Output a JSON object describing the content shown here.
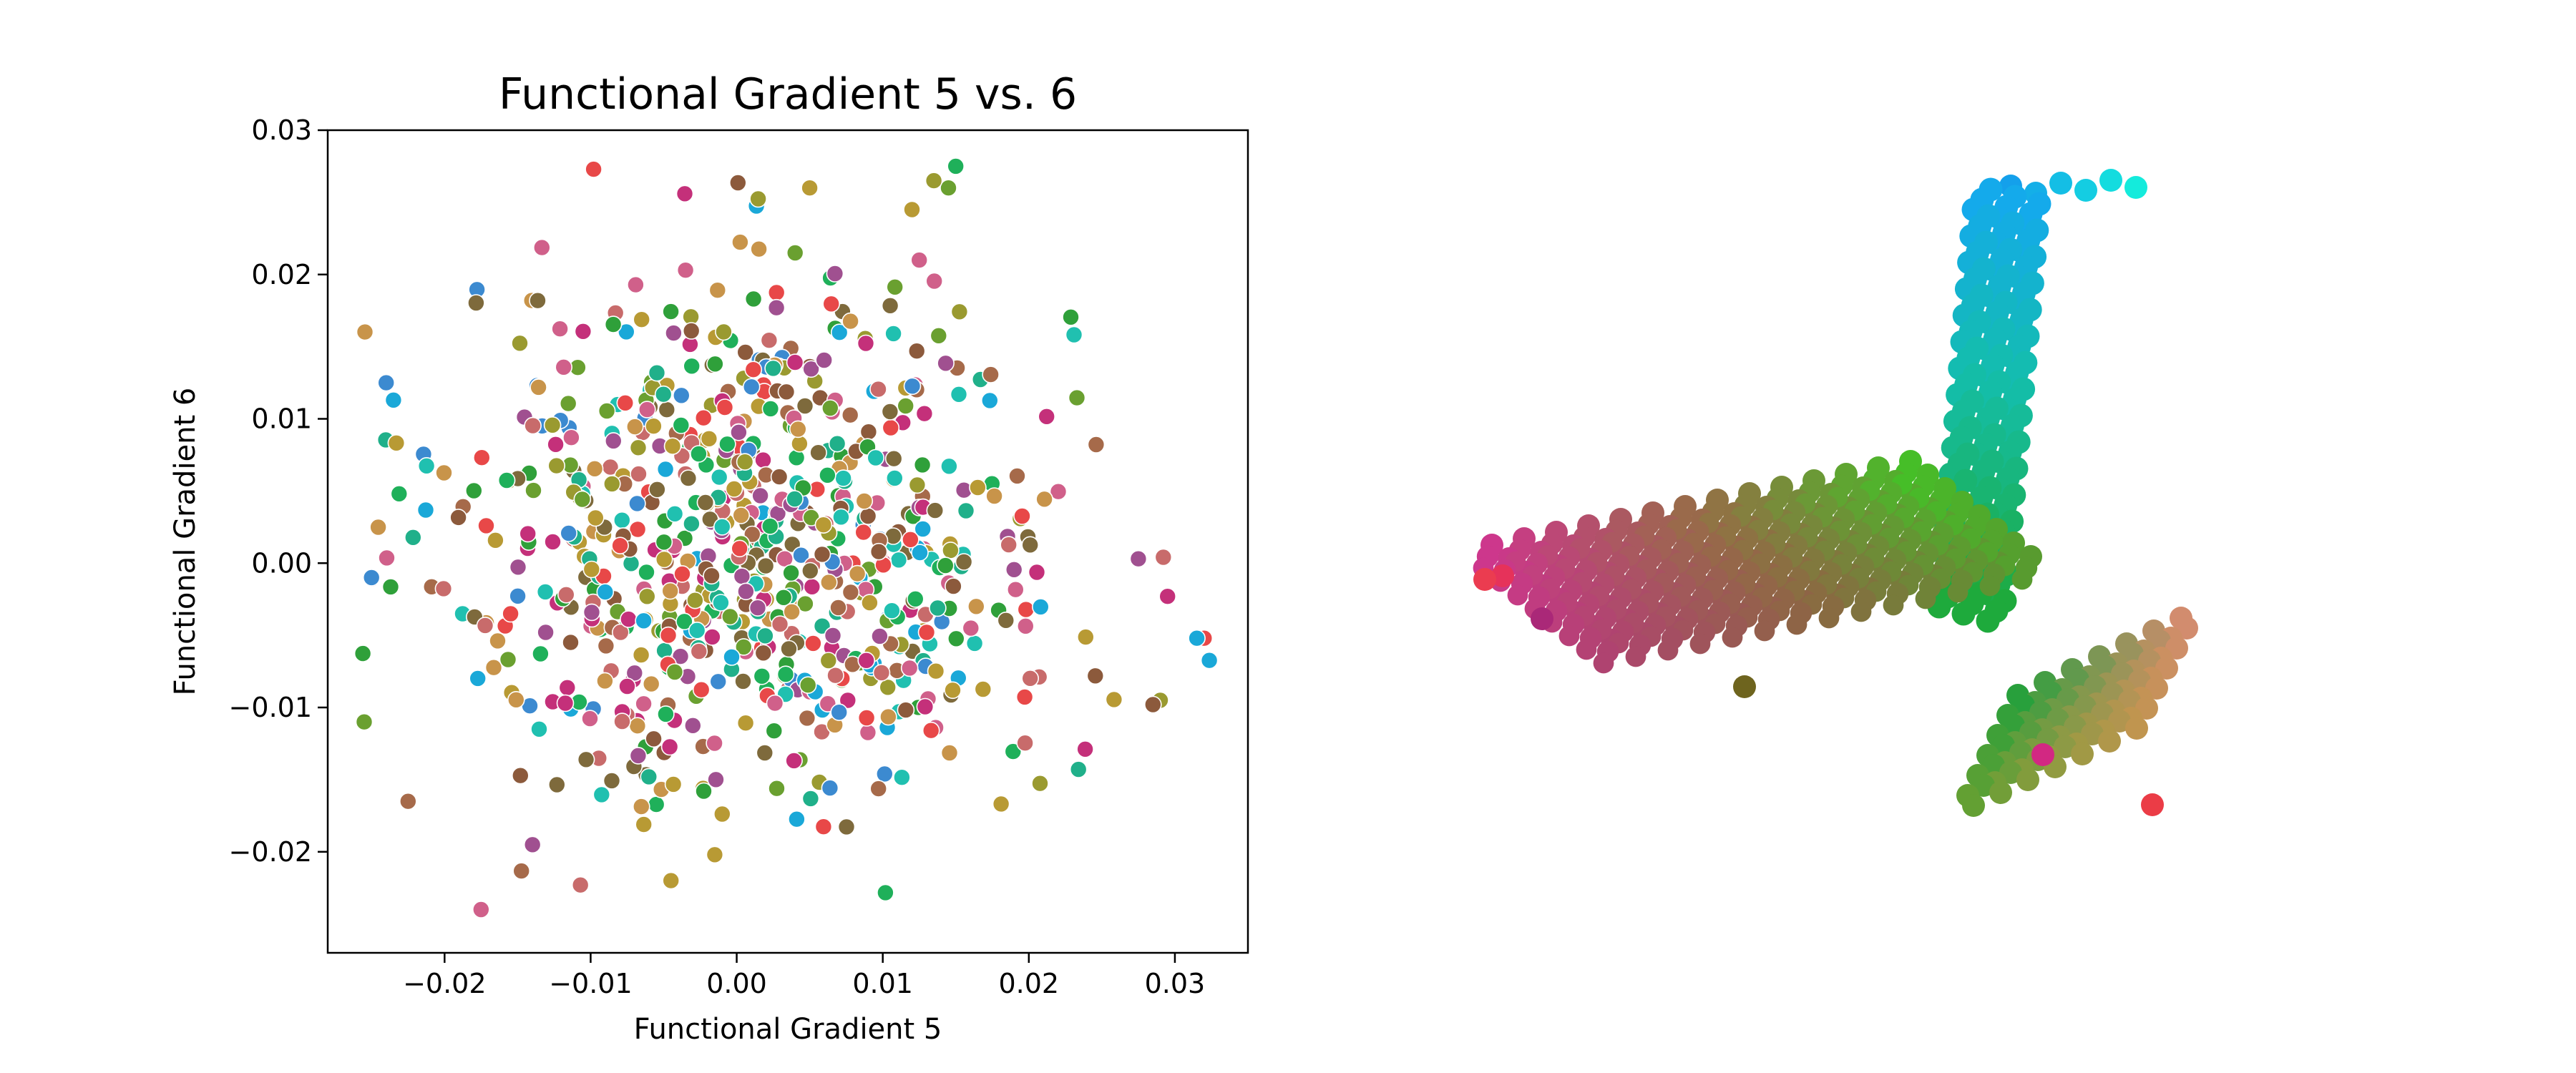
{
  "chart_data": [
    {
      "type": "scatter",
      "title": "Functional Gradient 5 vs. 6",
      "xlabel": "Functional Gradient 5",
      "ylabel": "Functional Gradient 6",
      "xlim": [
        -0.028,
        0.035
      ],
      "ylim": [
        -0.027,
        0.03
      ],
      "x_ticks": [
        -0.02,
        -0.01,
        0.0,
        0.01,
        0.02,
        0.03
      ],
      "x_tick_labels": [
        "−0.02",
        "−0.01",
        "0.00",
        "0.01",
        "0.02",
        "0.03"
      ],
      "y_ticks": [
        -0.02,
        -0.01,
        0.0,
        0.01,
        0.02,
        0.03
      ],
      "y_tick_labels": [
        "−0.02",
        "−0.01",
        "0.00",
        "0.01",
        "0.02",
        "0.03"
      ],
      "grid": false,
      "legend": "none",
      "n_points": 760,
      "colors_note": "points colored by brain region on a magenta–brown–green–cyan palette",
      "palette": [
        "#c4307a",
        "#c86b6b",
        "#a66a4a",
        "#7e6a3c",
        "#9a9a30",
        "#b89a34",
        "#6aa030",
        "#2fa03a",
        "#1fb05a",
        "#20b08a",
        "#20c0b0",
        "#1aa8d8",
        "#3c8ad0",
        "#a05090",
        "#d0608a",
        "#e84848",
        "#c8944a",
        "#8c5a3c"
      ],
      "highlight_points": [
        {
          "x": -0.024,
          "y": 0.0125
        },
        {
          "x": -0.0235,
          "y": 0.0113
        },
        {
          "x": -0.025,
          "y": -0.001
        },
        {
          "x": -0.0255,
          "y": -0.011
        },
        {
          "x": -0.0225,
          "y": -0.0165
        },
        {
          "x": -0.0175,
          "y": -0.024
        },
        {
          "x": 0.005,
          "y": 0.026
        },
        {
          "x": 0.015,
          "y": 0.0275
        },
        {
          "x": 0.0145,
          "y": 0.026
        },
        {
          "x": 0.0135,
          "y": 0.0265
        },
        {
          "x": 0.012,
          "y": 0.0245
        },
        {
          "x": 0.0125,
          "y": 0.021
        },
        {
          "x": 0.032,
          "y": -0.0052
        },
        {
          "x": 0.0315,
          "y": -0.0052
        },
        {
          "x": 0.029,
          "y": -0.0095
        },
        {
          "x": 0.0285,
          "y": -0.0098
        },
        {
          "x": 0.0275,
          "y": 0.0003
        },
        {
          "x": 0.0295,
          "y": -0.0023
        },
        {
          "x": -0.0035,
          "y": 0.0203
        },
        {
          "x": 0.004,
          "y": 0.0215
        },
        {
          "x": -0.0015,
          "y": -0.0202
        },
        {
          "x": -0.0045,
          "y": -0.022
        },
        {
          "x": 0.0025,
          "y": 0.0135
        },
        {
          "x": 0.0105,
          "y": 0.0105
        }
      ]
    },
    {
      "type": "scatter",
      "title": "",
      "xlabel": "",
      "ylabel": "",
      "dimensions": 3,
      "axes_visible": false,
      "colors_note": "3D rendering of voxel grid clusters colored by position (RGB gradient)"
    }
  ]
}
